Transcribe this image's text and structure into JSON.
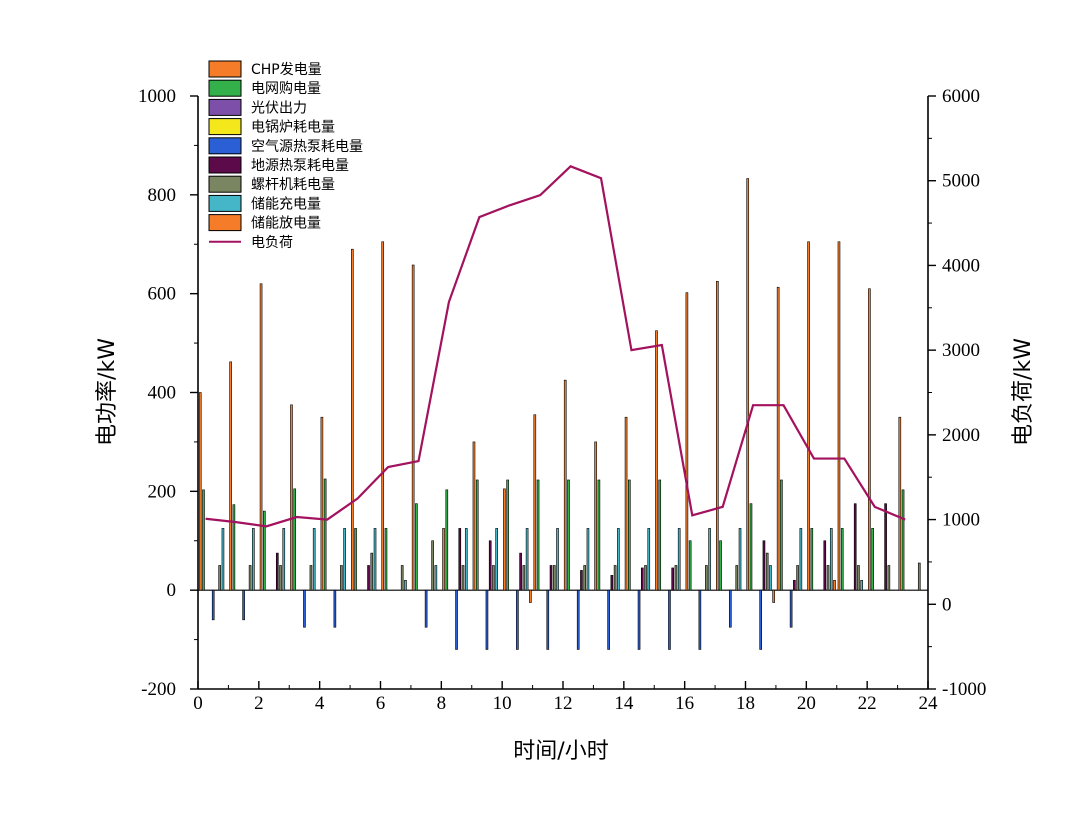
{
  "chart_data": {
    "type": "bar",
    "title": "",
    "xlabel": "时间/小时",
    "ylabel_left": "电功率/kW",
    "ylabel_right": "电负荷/kW",
    "xlim": [
      0,
      24
    ],
    "ylim_left": [
      -200,
      1000
    ],
    "ylim_right": [
      -1000,
      6000
    ],
    "x_ticks": [
      "0",
      "2",
      "4",
      "6",
      "8",
      "10",
      "12",
      "14",
      "16",
      "18",
      "20",
      "22",
      "24"
    ],
    "y_left_ticks": [
      "-200",
      "0",
      "200",
      "400",
      "600",
      "800",
      "1000"
    ],
    "y_right_ticks": [
      "-1000",
      "0",
      "1000",
      "2000",
      "3000",
      "4000",
      "5000",
      "6000"
    ],
    "legend_position": "top-left",
    "hours": [
      1,
      2,
      3,
      4,
      5,
      6,
      7,
      8,
      9,
      10,
      11,
      12,
      13,
      14,
      15,
      16,
      17,
      18,
      19,
      20,
      21,
      22,
      23,
      24
    ],
    "series": [
      {
        "name": "CHP发电量",
        "color": "#f57d2a",
        "axis": "left",
        "values": [
          400,
          462,
          620,
          375,
          350,
          690,
          705,
          658,
          125,
          300,
          205,
          355,
          425,
          300,
          350,
          525,
          602,
          625,
          833,
          613,
          705,
          705,
          610,
          350
        ]
      },
      {
        "name": "电网购电量",
        "color": "#33b04a",
        "axis": "left",
        "values": [
          203,
          173,
          160,
          205,
          225,
          125,
          125,
          175,
          203,
          223,
          223,
          223,
          223,
          223,
          223,
          223,
          100,
          100,
          175,
          223,
          125,
          125,
          125,
          203
        ]
      },
      {
        "name": "光伏出力",
        "color": "#7d4fa8",
        "axis": "left",
        "values": [
          0,
          0,
          0,
          0,
          0,
          0,
          0,
          0,
          0,
          0,
          0,
          0,
          0,
          0,
          0,
          0,
          0,
          0,
          0,
          0,
          0,
          0,
          0,
          0
        ]
      },
      {
        "name": "电锅炉耗电量",
        "color": "#f4e81c",
        "axis": "left",
        "values": [
          0,
          0,
          0,
          0,
          0,
          0,
          0,
          0,
          0,
          0,
          0,
          0,
          0,
          0,
          0,
          0,
          0,
          0,
          0,
          0,
          0,
          0,
          0,
          0
        ]
      },
      {
        "name": "空气源热泵耗电量",
        "color": "#2a5fd6",
        "axis": "left",
        "values": [
          -60,
          -60,
          0,
          -75,
          -75,
          0,
          0,
          -75,
          -120,
          -120,
          -120,
          -120,
          -120,
          -120,
          -120,
          -120,
          -120,
          -75,
          -120,
          -75,
          0,
          0,
          0,
          0
        ]
      },
      {
        "name": "地源热泵耗电量",
        "color": "#5c0a4a",
        "axis": "left",
        "values": [
          0,
          0,
          75,
          0,
          0,
          50,
          0,
          0,
          125,
          100,
          75,
          50,
          40,
          30,
          45,
          45,
          0,
          0,
          100,
          20,
          100,
          175,
          175,
          0
        ]
      },
      {
        "name": "螺杆机耗电量",
        "color": "#7a8662",
        "axis": "left",
        "values": [
          50,
          50,
          50,
          50,
          50,
          75,
          50,
          100,
          50,
          50,
          50,
          50,
          50,
          50,
          50,
          50,
          50,
          50,
          75,
          50,
          50,
          50,
          50,
          55
        ]
      },
      {
        "name": "储能充电量",
        "color": "#45b6c8",
        "axis": "left",
        "values": [
          125,
          125,
          125,
          125,
          125,
          125,
          20,
          50,
          125,
          125,
          125,
          125,
          125,
          125,
          125,
          125,
          125,
          125,
          50,
          125,
          125,
          20,
          0,
          0
        ]
      },
      {
        "name": "储能放电量",
        "color": "#f57d2a",
        "axis": "left",
        "values": [
          0,
          0,
          0,
          0,
          0,
          0,
          0,
          0,
          0,
          0,
          -25,
          0,
          0,
          0,
          0,
          0,
          0,
          0,
          -25,
          0,
          20,
          0,
          0,
          0
        ]
      },
      {
        "name": "电负荷",
        "color": "#a3125e",
        "axis": "right",
        "type": "line",
        "values": [
          1010,
          970,
          920,
          1030,
          1000,
          1250,
          1620,
          1690,
          3570,
          4570,
          4710,
          4830,
          5170,
          5030,
          3000,
          3060,
          1050,
          1150,
          2350,
          2350,
          1720,
          1720,
          1150,
          1000
        ]
      }
    ]
  }
}
